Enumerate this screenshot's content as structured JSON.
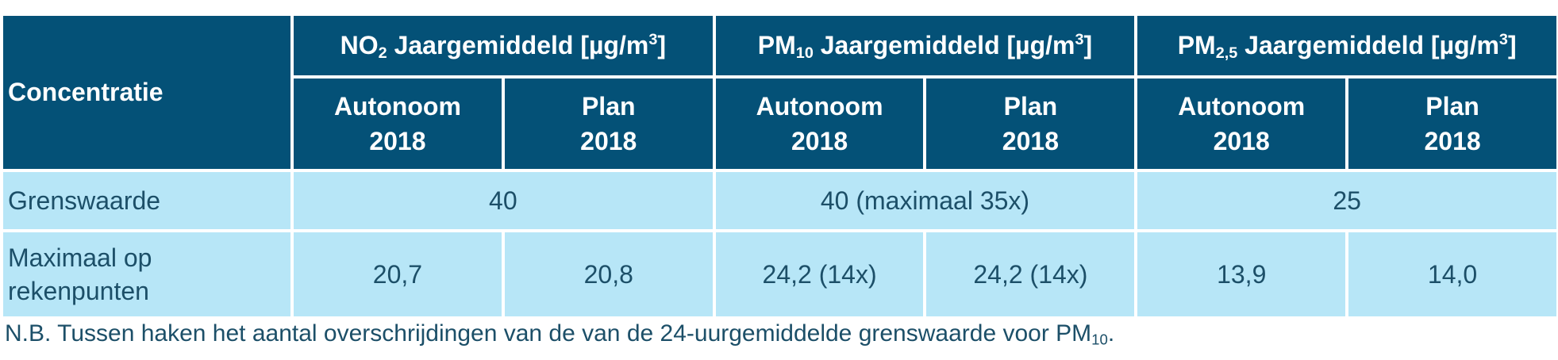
{
  "table": {
    "header_concentratie": "Concentratie",
    "groups": [
      {
        "name_pre": "NO",
        "name_sub": "2",
        "name_post": " Jaargemiddeld [µg/m",
        "name_sup": "3",
        "name_end": "]"
      },
      {
        "name_pre": "PM",
        "name_sub": "10",
        "name_post": " Jaargemiddeld [µg/m",
        "name_sup": "3",
        "name_end": "]"
      },
      {
        "name_pre": "PM",
        "name_sub": "2,5",
        "name_post": " Jaargemiddeld [µg/m",
        "name_sup": "3",
        "name_end": "]"
      }
    ],
    "subheaders": [
      {
        "line1": "Autonoom",
        "line2": "2018"
      },
      {
        "line1": "Plan",
        "line2": "2018"
      },
      {
        "line1": "Autonoom",
        "line2": "2018"
      },
      {
        "line1": "Plan",
        "line2": "2018"
      },
      {
        "line1": "Autonoom",
        "line2": "2018"
      },
      {
        "line1": "Plan",
        "line2": "2018"
      }
    ],
    "row_grens": {
      "label": "Grenswaarde",
      "values": [
        "40",
        "40 (maximaal 35x)",
        "25"
      ]
    },
    "row_max": {
      "label_line1": "Maximaal op",
      "label_line2": "rekenpunten",
      "values": [
        "20,7",
        "20,8",
        "24,2 (14x)",
        "24,2 (14x)",
        "13,9",
        "14,0"
      ]
    }
  },
  "note": {
    "text": "N.B. Tussen haken het aantal overschrijdingen van de van de 24-uurgemiddelde grenswaarde voor PM",
    "sub": "10",
    "end": "."
  },
  "colors": {
    "header_bg": "#045177",
    "cell_bg": "#b7e6f7",
    "text": "#1c4f68"
  }
}
